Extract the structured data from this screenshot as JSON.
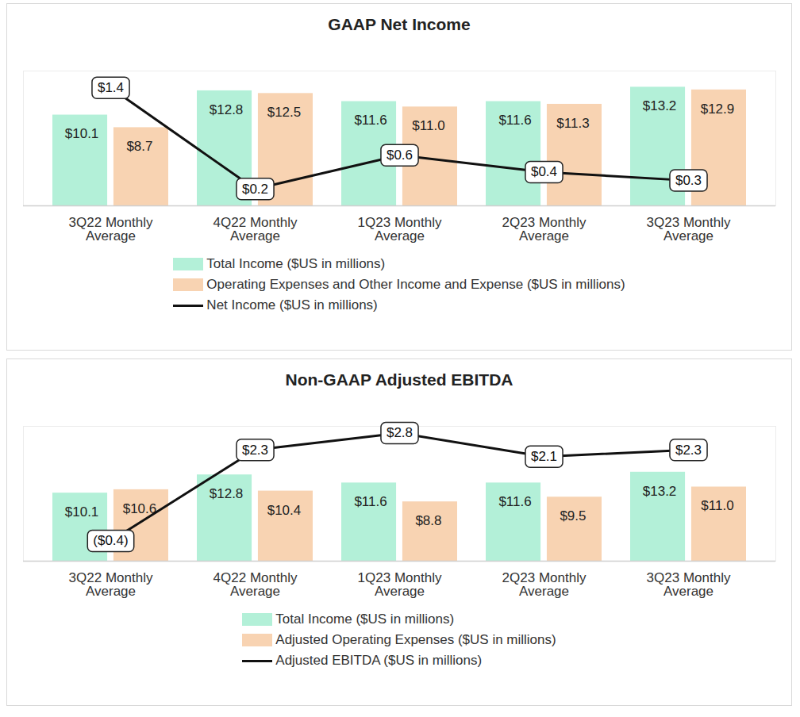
{
  "chart_data": [
    {
      "type": "bar",
      "title": "GAAP Net Income",
      "categories": [
        "3Q22 Monthly Average",
        "4Q22 Monthly Average",
        "1Q23 Monthly Average",
        "2Q23 Monthly Average",
        "3Q23 Monthly Average"
      ],
      "ylim": [
        0,
        15
      ],
      "y2lim": [
        0,
        1.6
      ],
      "tick_labels": "x",
      "data_labels": true,
      "legend": "bottom",
      "series": [
        {
          "name": "Total Income ($US in millions)",
          "type": "bar",
          "color": "#b3f0d8",
          "values": [
            10.1,
            12.8,
            11.6,
            11.6,
            13.2
          ],
          "value_labels": [
            "$10.1",
            "$12.8",
            "$11.6",
            "$11.6",
            "$13.2"
          ]
        },
        {
          "name": "Operating Expenses and Other Income and Expense ($US in millions)",
          "type": "bar",
          "color": "#f8d3b2",
          "values": [
            8.7,
            12.5,
            11.0,
            11.3,
            12.9
          ],
          "value_labels": [
            "$8.7",
            "$12.5",
            "$11.0",
            "$11.3",
            "$12.9"
          ]
        },
        {
          "name": "Net Income ($US in millions)",
          "type": "line",
          "axis": "y2",
          "color": "#111111",
          "values": [
            1.4,
            0.2,
            0.6,
            0.4,
            0.3
          ],
          "value_labels": [
            "$1.4",
            "$0.2",
            "$0.6",
            "$0.4",
            "$0.3"
          ]
        }
      ]
    },
    {
      "type": "bar",
      "title": "Non-GAAP Adjusted EBITDA",
      "categories": [
        "3Q22 Monthly Average",
        "4Q22 Monthly Average",
        "1Q23 Monthly Average",
        "2Q23 Monthly Average",
        "3Q23 Monthly Average"
      ],
      "ylim": [
        0,
        20
      ],
      "y2lim": [
        -1,
        3
      ],
      "tick_labels": "x",
      "data_labels": true,
      "legend": "bottom",
      "series": [
        {
          "name": "Total Income ($US in millions)",
          "type": "bar",
          "color": "#b3f0d8",
          "values": [
            10.1,
            12.8,
            11.6,
            11.6,
            13.2
          ],
          "value_labels": [
            "$10.1",
            "$12.8",
            "$11.6",
            "$11.6",
            "$13.2"
          ]
        },
        {
          "name": "Adjusted Operating Expenses ($US in millions)",
          "type": "bar",
          "color": "#f8d3b2",
          "values": [
            10.6,
            10.4,
            8.8,
            9.5,
            11.0
          ],
          "value_labels": [
            "$10.6",
            "$10.4",
            "$8.8",
            "$9.5",
            "$11.0"
          ]
        },
        {
          "name": "Adjusted EBITDA ($US in millions)",
          "type": "line",
          "axis": "y2",
          "color": "#111111",
          "values": [
            -0.4,
            2.3,
            2.8,
            2.1,
            2.3
          ],
          "value_labels": [
            "($0.4)",
            "$2.3",
            "$2.8",
            "$2.1",
            "$2.3"
          ]
        }
      ]
    }
  ]
}
